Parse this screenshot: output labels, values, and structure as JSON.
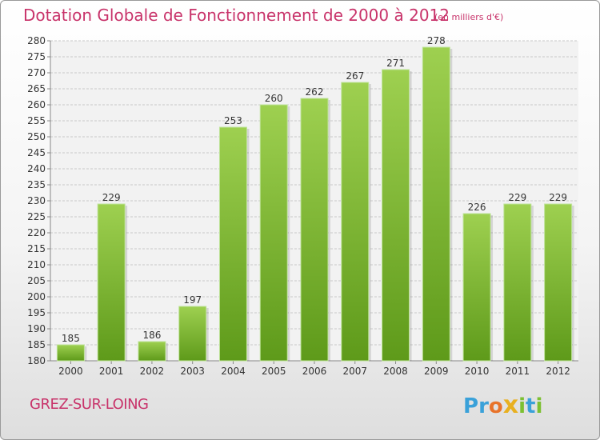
{
  "header": {
    "title": "Dotation Globale de Fonctionnement de 2000 à 2012",
    "subtitle": "(en milliers d'€)"
  },
  "footer": {
    "commune": "GREZ-SUR-LOING",
    "logo_text": "Proxiti",
    "logo_letters": [
      "P",
      "r",
      "o",
      "x",
      "i",
      "t",
      "i"
    ],
    "logo_colors": [
      "#3aa1d9",
      "#3aa1d9",
      "#e8732a",
      "#e8b020",
      "#7cc032",
      "#3aa1d9",
      "#7cc032"
    ]
  },
  "chart_data": {
    "type": "bar",
    "categories": [
      "2000",
      "2001",
      "2002",
      "2003",
      "2004",
      "2005",
      "2006",
      "2007",
      "2008",
      "2009",
      "2010",
      "2011",
      "2012"
    ],
    "values": [
      185,
      229,
      186,
      197,
      253,
      260,
      262,
      267,
      271,
      278,
      226,
      229,
      229
    ],
    "data_labels": [
      "185",
      "229",
      "186",
      "197",
      "253",
      "260",
      "262",
      "267",
      "271",
      "278",
      "226",
      "229",
      "229"
    ],
    "y_ticks": [
      "180",
      "185",
      "190",
      "195",
      "200",
      "205",
      "210",
      "215",
      "220",
      "225",
      "230",
      "235",
      "240",
      "245",
      "250",
      "255",
      "260",
      "265",
      "270",
      "275",
      "280"
    ],
    "ylim": [
      180,
      280
    ],
    "grid": true,
    "bar_color": "#7cc032"
  }
}
